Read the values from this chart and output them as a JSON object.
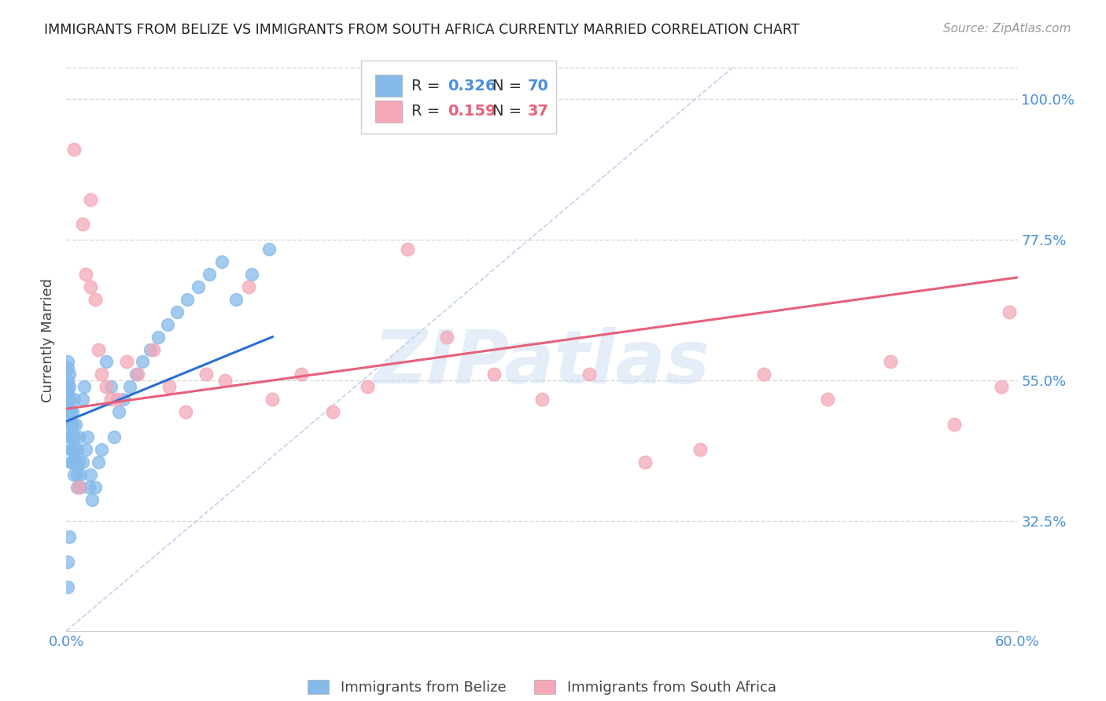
{
  "title": "IMMIGRANTS FROM BELIZE VS IMMIGRANTS FROM SOUTH AFRICA CURRENTLY MARRIED CORRELATION CHART",
  "source_text": "Source: ZipAtlas.com",
  "ylabel": "Currently Married",
  "xlim": [
    0.0,
    0.6
  ],
  "ylim": [
    0.15,
    1.08
  ],
  "xticks": [
    0.0,
    0.1,
    0.2,
    0.3,
    0.4,
    0.5,
    0.6
  ],
  "xticklabels": [
    "0.0%",
    "",
    "",
    "",
    "",
    "",
    "60.0%"
  ],
  "ytick_values": [
    0.325,
    0.55,
    0.775,
    1.0
  ],
  "ytick_labels": [
    "32.5%",
    "55.0%",
    "77.5%",
    "100.0%"
  ],
  "belize_color": "#85baea",
  "sa_color": "#f4a8b8",
  "belize_R": 0.326,
  "belize_N": 70,
  "sa_R": 0.159,
  "sa_N": 37,
  "belize_label": "Immigrants from Belize",
  "sa_label": "Immigrants from South Africa",
  "trend_blue_color": "#2b6fd4",
  "trend_pink_color": "#e8607a",
  "watermark": "ZIPatlas",
  "background_color": "#ffffff",
  "grid_color": "#d8d8d8",
  "axis_label_color": "#4a90d9",
  "title_color": "#222222",
  "belize_x": [
    0.001,
    0.001,
    0.001,
    0.001,
    0.001,
    0.001,
    0.002,
    0.002,
    0.002,
    0.002,
    0.002,
    0.002,
    0.002,
    0.003,
    0.003,
    0.003,
    0.003,
    0.003,
    0.004,
    0.004,
    0.004,
    0.004,
    0.004,
    0.005,
    0.005,
    0.005,
    0.005,
    0.006,
    0.006,
    0.006,
    0.007,
    0.007,
    0.007,
    0.008,
    0.008,
    0.009,
    0.009,
    0.01,
    0.01,
    0.011,
    0.012,
    0.013,
    0.014,
    0.015,
    0.016,
    0.018,
    0.02,
    0.022,
    0.025,
    0.028,
    0.03,
    0.033,
    0.036,
    0.04,
    0.044,
    0.048,
    0.053,
    0.058,
    0.064,
    0.07,
    0.076,
    0.083,
    0.09,
    0.098,
    0.107,
    0.117,
    0.128,
    0.001,
    0.001,
    0.002
  ],
  "belize_y": [
    0.54,
    0.57,
    0.55,
    0.53,
    0.52,
    0.58,
    0.5,
    0.52,
    0.54,
    0.56,
    0.48,
    0.5,
    0.46,
    0.48,
    0.44,
    0.5,
    0.46,
    0.42,
    0.46,
    0.48,
    0.44,
    0.5,
    0.42,
    0.44,
    0.46,
    0.4,
    0.52,
    0.42,
    0.44,
    0.48,
    0.4,
    0.44,
    0.38,
    0.42,
    0.46,
    0.38,
    0.4,
    0.52,
    0.42,
    0.54,
    0.44,
    0.46,
    0.38,
    0.4,
    0.36,
    0.38,
    0.42,
    0.44,
    0.58,
    0.54,
    0.46,
    0.5,
    0.52,
    0.54,
    0.56,
    0.58,
    0.6,
    0.62,
    0.64,
    0.66,
    0.68,
    0.7,
    0.72,
    0.74,
    0.68,
    0.72,
    0.76,
    0.22,
    0.26,
    0.3
  ],
  "sa_x": [
    0.005,
    0.01,
    0.012,
    0.015,
    0.018,
    0.02,
    0.022,
    0.025,
    0.028,
    0.032,
    0.038,
    0.045,
    0.055,
    0.065,
    0.075,
    0.088,
    0.1,
    0.115,
    0.13,
    0.148,
    0.168,
    0.19,
    0.215,
    0.24,
    0.27,
    0.3,
    0.33,
    0.365,
    0.4,
    0.44,
    0.48,
    0.52,
    0.56,
    0.59,
    0.595,
    0.008,
    0.015
  ],
  "sa_y": [
    0.92,
    0.8,
    0.72,
    0.7,
    0.68,
    0.6,
    0.56,
    0.54,
    0.52,
    0.52,
    0.58,
    0.56,
    0.6,
    0.54,
    0.5,
    0.56,
    0.55,
    0.7,
    0.52,
    0.56,
    0.5,
    0.54,
    0.76,
    0.62,
    0.56,
    0.52,
    0.56,
    0.42,
    0.44,
    0.56,
    0.52,
    0.58,
    0.48,
    0.54,
    0.66,
    0.38,
    0.84
  ],
  "belize_trend_x": [
    0.0,
    0.13
  ],
  "sa_trend_x": [
    0.0,
    0.6
  ],
  "belize_trend_y": [
    0.485,
    0.62
  ],
  "sa_trend_y": [
    0.505,
    0.715
  ]
}
